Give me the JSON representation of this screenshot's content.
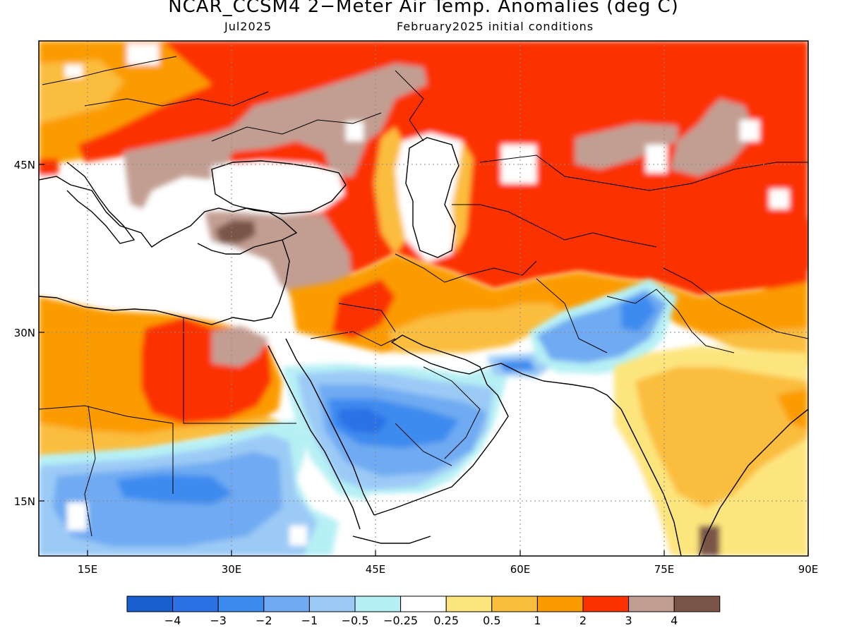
{
  "title": "NCAR_CCSM4 2−Meter Air Temp. Anomalies (deg C)",
  "subtitle_left": "Jul2025",
  "subtitle_right": "February2025 initial conditions",
  "lat_labels": [
    "45N",
    "30N",
    "15N"
  ],
  "lon_labels": [
    "15E",
    "30E",
    "45E",
    "60E",
    "75E",
    "90E"
  ],
  "colorbar": {
    "colors": [
      "#1a5fcf",
      "#2a72e6",
      "#3c8bef",
      "#6faaf2",
      "#9ccaf6",
      "#b6f0f4",
      "#ffffff",
      "#fde57e",
      "#fbbd3c",
      "#fb9b00",
      "#fb3200",
      "#c29e92",
      "#7a5447"
    ],
    "labels": [
      "−4",
      "−3",
      "−2",
      "−1",
      "−0.5",
      "−0.25",
      "0.25",
      "0.5",
      "1",
      "2",
      "3",
      "4"
    ]
  }
}
